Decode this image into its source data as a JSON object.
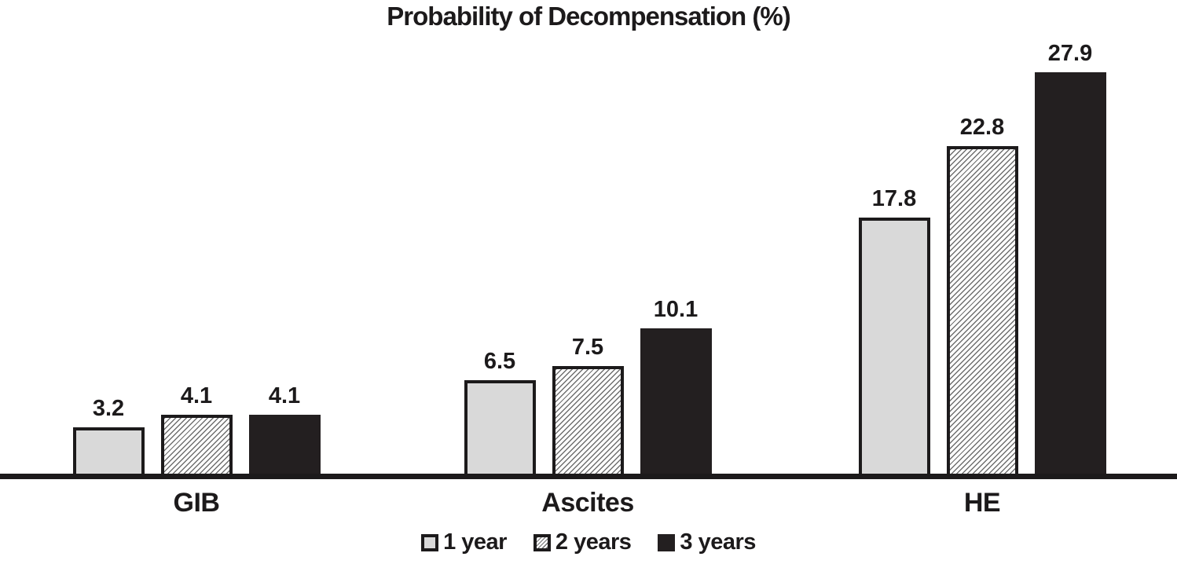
{
  "chart_data": {
    "type": "bar",
    "title": "Probability of Decompensation (%)",
    "categories": [
      "GIB",
      "Ascites",
      "HE"
    ],
    "series": [
      {
        "name": "1 year",
        "values": [
          3.2,
          6.5,
          17.8
        ],
        "pattern": "solid",
        "fill": "#d9d9d9",
        "border": "#1c1a1b"
      },
      {
        "name": "2 years",
        "values": [
          4.1,
          7.5,
          22.8
        ],
        "pattern": "diagonal-hatch",
        "fill": "#ffffff",
        "border": "#1c1a1b"
      },
      {
        "name": "3 years",
        "values": [
          4.1,
          10.1,
          27.9
        ],
        "pattern": "solid",
        "fill": "#231f20",
        "border": "#231f20"
      }
    ],
    "ylim": [
      0,
      30
    ],
    "xlabel": "",
    "ylabel": "",
    "grid": false,
    "y_axis_visible": false,
    "x_axis_line_color": "#1c1a1b",
    "value_labels": true,
    "value_label_format": "one-decimal",
    "legend_position": "bottom"
  }
}
